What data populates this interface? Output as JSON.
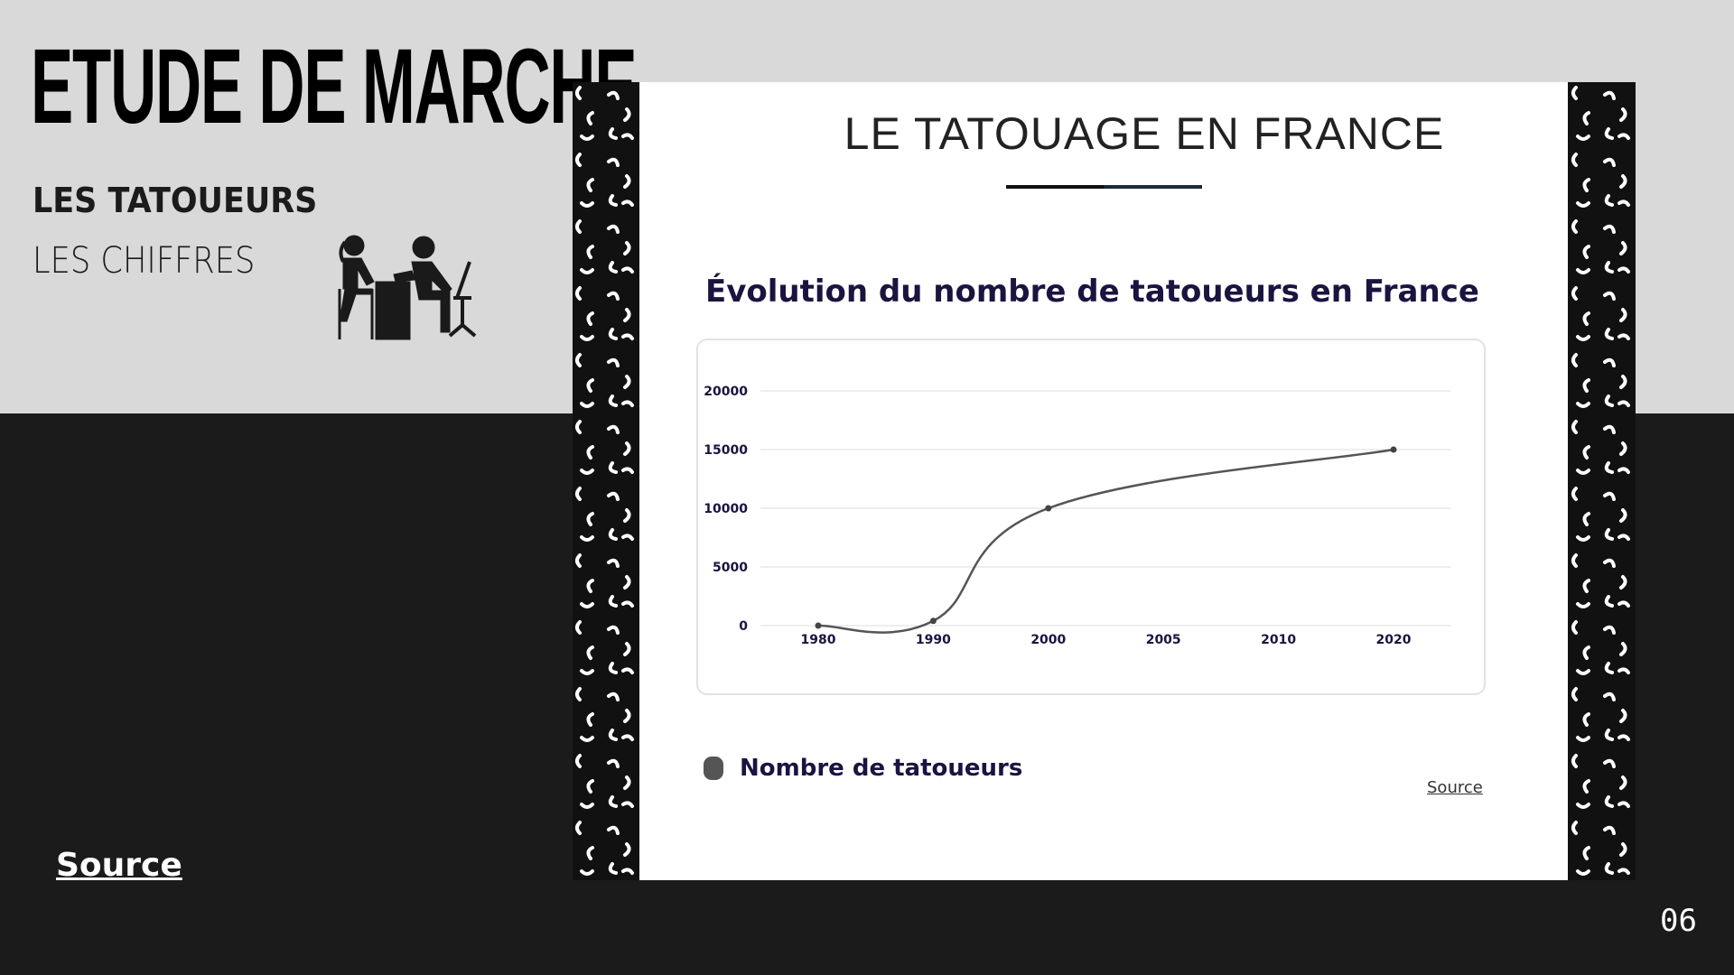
{
  "header": {
    "title": "ETUDE DE MARCHE",
    "subtitle": "LES TATOUEURS",
    "subtitle2": "LES CHIFFRES"
  },
  "icon": "tattoo-artist-client-icon",
  "footer": {
    "source_label": "Source",
    "page_number": "06"
  },
  "image": {
    "heading": "LE TATOUAGE EN FRANCE",
    "source_label": "Source",
    "colors": {
      "title": "#1a1440",
      "line": "#555555",
      "pattern_bg": "#111111",
      "pattern_fg": "#ffffff",
      "top_bg": "#d9d9d9",
      "bottom_bg": "#1b1b1b"
    }
  },
  "chart_data": {
    "type": "line",
    "title": "Évolution du nombre de tatoueurs en France",
    "categories": [
      "1980",
      "1990",
      "2000",
      "2005",
      "2010",
      "2020"
    ],
    "series": [
      {
        "name": "Nombre de tatoueurs",
        "values": [
          0,
          400,
          10000,
          null,
          null,
          15000
        ]
      }
    ],
    "yticks": [
      "0",
      "5000",
      "10000",
      "15000",
      "20000"
    ],
    "ylim": [
      0,
      20000
    ],
    "grid": true,
    "legend": "bottom-left",
    "smooth": true
  }
}
